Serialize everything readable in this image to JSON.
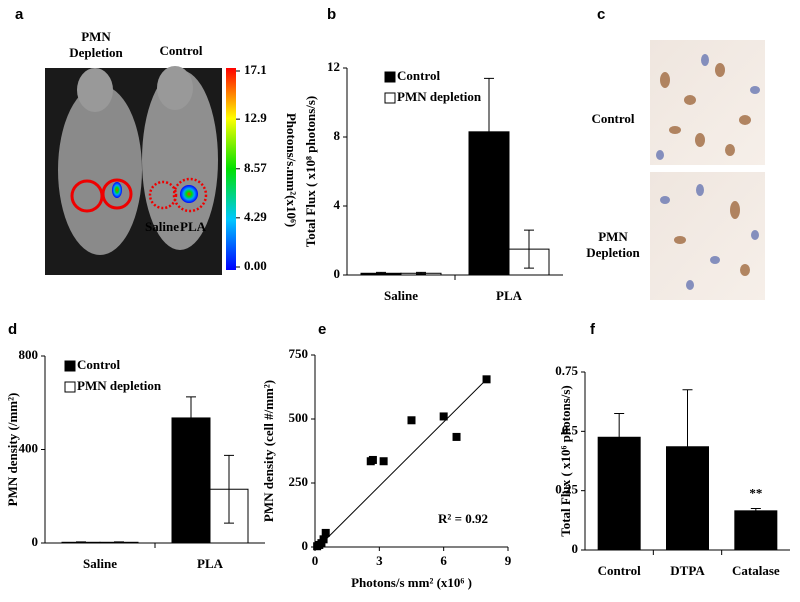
{
  "panel_a": {
    "label": "a",
    "group_labels": {
      "depletion": [
        "PMN",
        "Depletion"
      ],
      "control": "Control"
    },
    "site_labels": [
      "Saline",
      "PLA"
    ],
    "colorbar": {
      "label": "Photons/s.mm²(x10⁶)",
      "ticks": [
        {
          "value": 0,
          "label": "0.00"
        },
        4.29,
        8.57,
        12.9,
        17.1
      ]
    }
  },
  "panel_c": {
    "label": "c",
    "rows": [
      [
        "Control"
      ],
      [
        "PMN",
        "Depletion"
      ]
    ]
  },
  "chart_data": [
    {
      "type": "bar",
      "label": "b",
      "y_label": "Total Flux ( x10⁸ photons/s)",
      "categories": [
        "Saline",
        "PLA"
      ],
      "series": [
        {
          "name": "Control",
          "color": "#000000",
          "values": [
            0.1,
            8.3
          ],
          "errors": [
            0.05,
            3.1
          ]
        },
        {
          "name": "PMN depletion",
          "color": "#ffffff",
          "values": [
            0.1,
            1.5
          ],
          "errors": [
            0.05,
            1.1
          ]
        }
      ],
      "ylim": [
        0,
        12
      ],
      "yticks": [
        0,
        4,
        8,
        12
      ]
    },
    {
      "type": "bar",
      "label": "d",
      "y_label": "PMN density (/mm²)",
      "categories": [
        "Saline",
        "PLA"
      ],
      "series": [
        {
          "name": "Control",
          "color": "#000000",
          "values": [
            3,
            535
          ],
          "errors": [
            2,
            90
          ]
        },
        {
          "name": "PMN depletion",
          "color": "#ffffff",
          "values": [
            3,
            230
          ],
          "errors": [
            2,
            145
          ]
        }
      ],
      "ylim": [
        0,
        800
      ],
      "yticks": [
        0,
        400,
        800
      ]
    },
    {
      "type": "scatter",
      "label": "e",
      "x_label": "Photons/s mm² (x10⁶ )",
      "y_label": "PMN density (cell #/mm²)",
      "x": [
        0.1,
        0.2,
        0.3,
        0.4,
        0.5,
        2.6,
        2.7,
        3.2,
        4.5,
        6.0,
        6.6,
        8.0
      ],
      "y": [
        3,
        8,
        15,
        30,
        55,
        335,
        340,
        335,
        495,
        510,
        430,
        655
      ],
      "color": "#000000",
      "trendline": {
        "x": [
          0.15,
          8.0
        ],
        "y": [
          0,
          655
        ]
      },
      "annotation": "R² = 0.92",
      "xlim": [
        0,
        9
      ],
      "ylim": [
        0,
        750
      ],
      "xticks": [
        0,
        3,
        6,
        9
      ],
      "yticks": [
        0,
        250,
        500,
        750
      ]
    },
    {
      "type": "bar",
      "label": "f",
      "y_label": "Total Flux ( x10⁶ photons/s)",
      "categories": [
        "Control",
        "DTPA",
        "Catalase"
      ],
      "series": [
        {
          "color": "#000000",
          "values": [
            0.475,
            0.435,
            0.165
          ],
          "errors": [
            0.1,
            0.24,
            0.01
          ]
        }
      ],
      "annotation": "**",
      "ylim": [
        0,
        0.75
      ],
      "yticks": [
        0,
        0.25,
        0.5,
        0.75
      ]
    }
  ]
}
